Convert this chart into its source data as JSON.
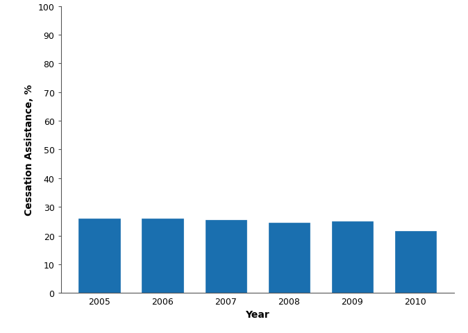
{
  "categories": [
    "2005",
    "2006",
    "2007",
    "2008",
    "2009",
    "2010"
  ],
  "values": [
    26.0,
    26.0,
    25.5,
    24.5,
    25.0,
    21.5
  ],
  "bar_color": "#1a6faf",
  "xlabel": "Year",
  "ylabel": "Cessation Assistance, %",
  "ylim": [
    0,
    100
  ],
  "yticks": [
    0,
    10,
    20,
    30,
    40,
    50,
    60,
    70,
    80,
    90,
    100
  ],
  "bar_width": 0.65,
  "background_color": "#ffffff",
  "edge_color": "#1a6faf",
  "edge_width": 0.5,
  "figsize": [
    6.74,
    4.81
  ],
  "dpi": 100
}
